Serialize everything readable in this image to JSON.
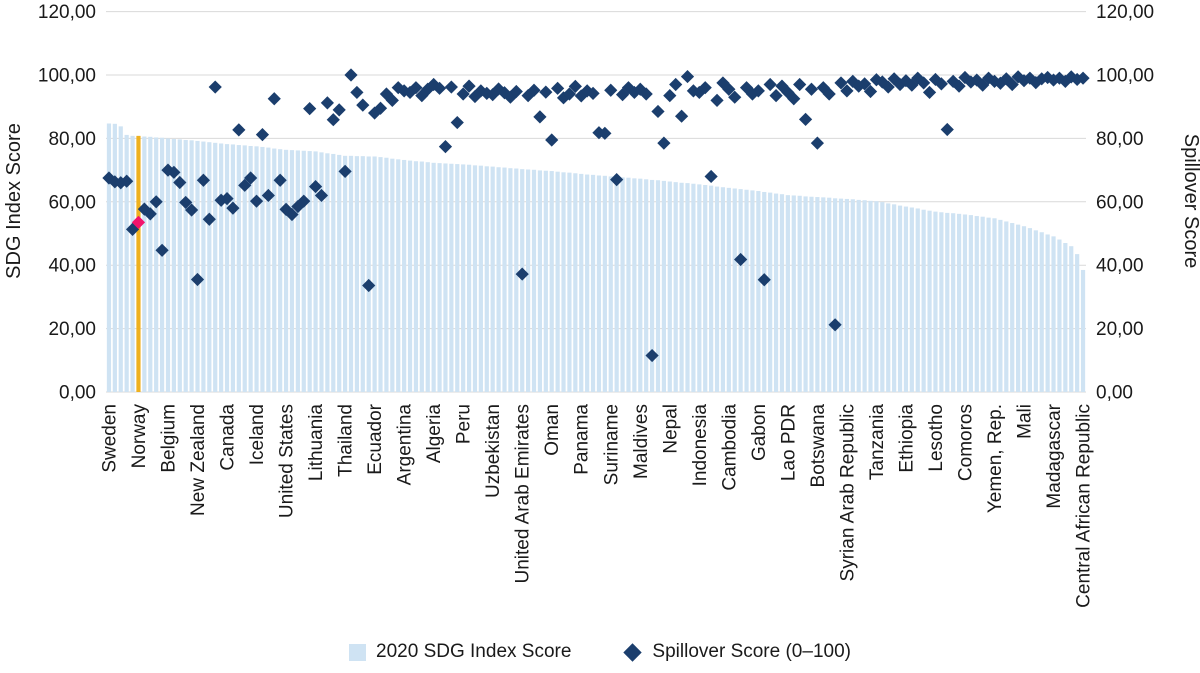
{
  "left_axis": {
    "title": "SDG Index Score"
  },
  "right_axis": {
    "title": "Spillover Score"
  },
  "legend": {
    "bar_label": "2020 SDG Index Score",
    "scatter_label": "Spillover Score (0–100)"
  },
  "colors": {
    "bar": "#cfe3f3",
    "bar_highlight": "#eeb120",
    "diamond": "#1b3e6d",
    "diamond_highlight": "#f2146b",
    "gridline": "#d9d9d9",
    "text": "#1a1a1a"
  },
  "chart_data": {
    "type": "bar+scatter",
    "n_points": 166,
    "ylim": [
      0,
      120
    ],
    "yticks": [
      0,
      20,
      40,
      60,
      80,
      100,
      120
    ],
    "y_tick_labels": [
      "0,00",
      "20,00",
      "40,00",
      "60,00",
      "80,00",
      "100,00",
      "120,00"
    ],
    "decimal_separator": ",",
    "grid": true,
    "legend_position": "bottom",
    "x_tick_labels": [
      {
        "position": 1,
        "label": "Sweden"
      },
      {
        "position": 6,
        "label": "Norway"
      },
      {
        "position": 11,
        "label": "Belgium"
      },
      {
        "position": 16,
        "label": "New Zealand"
      },
      {
        "position": 21,
        "label": "Canada"
      },
      {
        "position": 26,
        "label": "Iceland"
      },
      {
        "position": 31,
        "label": "United States"
      },
      {
        "position": 36,
        "label": "Lithuania"
      },
      {
        "position": 41,
        "label": "Thailand"
      },
      {
        "position": 46,
        "label": "Ecuador"
      },
      {
        "position": 51,
        "label": "Argentina"
      },
      {
        "position": 56,
        "label": "Algeria"
      },
      {
        "position": 61,
        "label": "Peru"
      },
      {
        "position": 66,
        "label": "Uzbekistan"
      },
      {
        "position": 71,
        "label": "United Arab Emirates"
      },
      {
        "position": 76,
        "label": "Oman"
      },
      {
        "position": 81,
        "label": "Panama"
      },
      {
        "position": 86,
        "label": "Suriname"
      },
      {
        "position": 91,
        "label": "Maldives"
      },
      {
        "position": 96,
        "label": "Nepal"
      },
      {
        "position": 101,
        "label": "Indonesia"
      },
      {
        "position": 106,
        "label": "Cambodia"
      },
      {
        "position": 111,
        "label": "Gabon"
      },
      {
        "position": 116,
        "label": "Lao PDR"
      },
      {
        "position": 121,
        "label": "Botswana"
      },
      {
        "position": 126,
        "label": "Syrian Arab Republic"
      },
      {
        "position": 131,
        "label": "Tanzania"
      },
      {
        "position": 136,
        "label": "Ethiopia"
      },
      {
        "position": 141,
        "label": "Lesotho"
      },
      {
        "position": 146,
        "label": "Comoros"
      },
      {
        "position": 151,
        "label": "Yemen, Rep."
      },
      {
        "position": 156,
        "label": "Mali"
      },
      {
        "position": 161,
        "label": "Madagascar"
      },
      {
        "position": 166,
        "label": "Central African Republic"
      }
    ],
    "highlight": {
      "position": 6,
      "label": "Norway",
      "bar_color": "#eeb120",
      "marker_color": "#f2146b"
    },
    "series": [
      {
        "name": "2020 SDG Index Score",
        "type": "bar",
        "axis": "left",
        "values": [
          84.7,
          84.6,
          83.8,
          81.1,
          80.8,
          80.8,
          80.6,
          80.5,
          80.3,
          80.2,
          80.0,
          79.8,
          79.7,
          79.5,
          79.4,
          79.2,
          79.0,
          78.8,
          78.6,
          78.4,
          78.2,
          78.1,
          77.9,
          77.8,
          77.6,
          77.5,
          77.3,
          77.1,
          76.8,
          76.6,
          76.4,
          76.3,
          76.2,
          76.1,
          76.0,
          75.9,
          75.6,
          75.3,
          75.1,
          74.8,
          74.5,
          74.5,
          74.4,
          74.4,
          74.3,
          74.3,
          74.1,
          73.9,
          73.6,
          73.4,
          73.2,
          73.0,
          72.8,
          72.7,
          72.5,
          72.3,
          72.2,
          72.1,
          72.0,
          71.9,
          71.8,
          71.7,
          71.5,
          71.4,
          71.2,
          71.1,
          70.9,
          70.8,
          70.6,
          70.5,
          70.3,
          70.2,
          70.1,
          69.9,
          69.8,
          69.7,
          69.5,
          69.3,
          69.2,
          69.0,
          68.8,
          68.6,
          68.5,
          68.3,
          68.2,
          68.0,
          67.9,
          67.7,
          67.6,
          67.4,
          67.3,
          67.1,
          66.9,
          66.8,
          66.6,
          66.4,
          66.2,
          66.0,
          65.9,
          65.7,
          65.5,
          65.3,
          65.1,
          64.8,
          64.6,
          64.4,
          64.2,
          64.0,
          63.8,
          63.6,
          63.4,
          63.1,
          62.9,
          62.6,
          62.4,
          62.1,
          62.0,
          61.9,
          61.7,
          61.6,
          61.5,
          61.4,
          61.3,
          61.1,
          61.0,
          60.9,
          60.8,
          60.6,
          60.5,
          60.3,
          60.2,
          59.9,
          59.5,
          59.2,
          58.8,
          58.5,
          58.2,
          57.9,
          57.5,
          57.2,
          56.9,
          56.7,
          56.5,
          56.4,
          56.2,
          56.0,
          55.8,
          55.5,
          55.3,
          55.0,
          54.8,
          54.3,
          53.8,
          53.3,
          52.8,
          52.3,
          51.7,
          51.0,
          50.4,
          49.7,
          49.1,
          48.1,
          47.0,
          46.0,
          43.5,
          38.5
        ]
      },
      {
        "name": "Spillover Score (0–100)",
        "type": "scatter",
        "axis": "right",
        "values": [
          67.5,
          66.3,
          66.0,
          66.5,
          51.3,
          53.5,
          57.7,
          56.2,
          60.0,
          44.7,
          70.0,
          69.3,
          66.1,
          59.8,
          57.4,
          35.5,
          66.8,
          54.5,
          96.2,
          60.5,
          61.0,
          58.0,
          82.7,
          65.2,
          67.5,
          60.2,
          81.2,
          62.0,
          92.5,
          66.8,
          57.6,
          56.0,
          58.5,
          60.2,
          89.4,
          64.8,
          62.0,
          91.2,
          85.9,
          89.0,
          69.6,
          100.0,
          94.5,
          90.5,
          33.6,
          88.0,
          89.5,
          94.0,
          92.0,
          96.0,
          95.0,
          94.5,
          96.0,
          93.5,
          95.5,
          97.0,
          95.8,
          77.4,
          96.2,
          85.0,
          94.0,
          96.5,
          93.2,
          95.0,
          94.2,
          93.8,
          95.6,
          94.4,
          93.0,
          94.8,
          37.2,
          93.5,
          95.2,
          86.8,
          94.6,
          79.5,
          95.8,
          92.8,
          94.0,
          96.4,
          93.4,
          95.0,
          94.2,
          81.8,
          81.6,
          95.2,
          67.0,
          93.8,
          96.0,
          94.5,
          95.5,
          94.0,
          11.5,
          88.5,
          78.5,
          93.5,
          97.0,
          87.0,
          99.5,
          95.0,
          94.5,
          96.0,
          68.0,
          92.0,
          97.5,
          95.5,
          93.0,
          41.8,
          96.0,
          94.0,
          95.0,
          35.4,
          97.0,
          93.5,
          96.5,
          94.5,
          92.5,
          97.0,
          86.0,
          95.5,
          78.5,
          96.0,
          94.0,
          21.2,
          97.5,
          95.0,
          98.0,
          96.5,
          97.2,
          94.8,
          98.5,
          97.8,
          96.2,
          98.8,
          97.0,
          98.2,
          96.8,
          99.0,
          97.5,
          94.5,
          98.6,
          97.2,
          82.8,
          98.0,
          96.5,
          99.2,
          97.8,
          98.4,
          96.8,
          99.0,
          98.0,
          97.4,
          98.8,
          97.0,
          99.4,
          98.2,
          99.0,
          97.6,
          98.8,
          99.2,
          98.4,
          99.0,
          98.0,
          99.4,
          98.6,
          99.0
        ]
      }
    ]
  }
}
